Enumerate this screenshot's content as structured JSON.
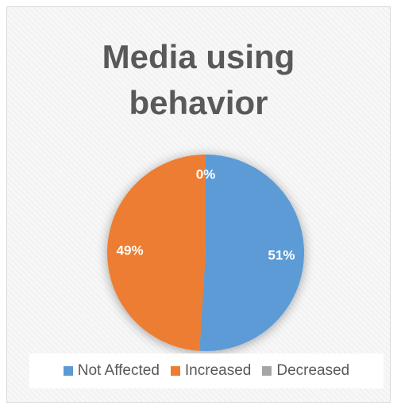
{
  "chart_data": {
    "type": "pie",
    "title": [
      "Media using",
      "behavior"
    ],
    "categories": [
      "Not Affected",
      "Increased",
      "Decreased"
    ],
    "values": [
      51,
      49,
      0
    ],
    "data_labels": [
      "51%",
      "49%",
      "0%"
    ],
    "colors": [
      "#5b9bd5",
      "#ed7d31",
      "#a5a5a5"
    ],
    "legend_position": "bottom"
  }
}
